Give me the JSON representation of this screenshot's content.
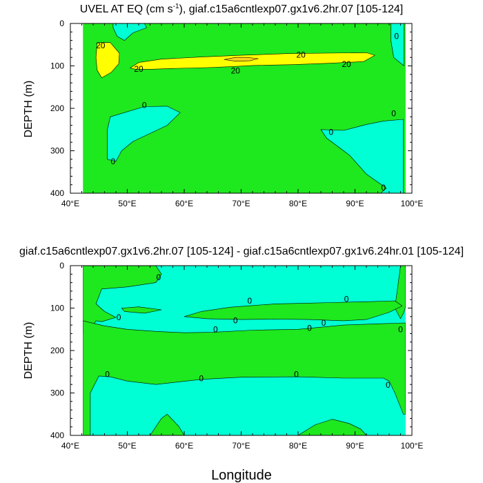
{
  "colors": {
    "negative": "#00ffd4",
    "low_positive": "#1ee81e",
    "mid_positive": "#ffff00",
    "high_positive": "#ffd21e",
    "axis": "#000000"
  },
  "chart_data": [
    {
      "type": "contour",
      "title": "UVEL AT EQ (cm s⁻¹), giaf.c15a6cntlexp07.gx1v6.2hr.07 [105-124]",
      "title_main": "UVEL AT EQ (cm s",
      "title_sup": "-1",
      "title_rest": "), giaf.c15a6cntlexp07.gx1v6.2hr.07 [105-124]",
      "ylabel": "DEPTH (m)",
      "xlim": [
        40,
        100
      ],
      "ylim": [
        0,
        400
      ],
      "x_ticks": [
        40,
        50,
        60,
        70,
        80,
        90,
        100
      ],
      "x_tick_labels": [
        "40°E",
        "50°E",
        "60°E",
        "70°E",
        "80°E",
        "90°E",
        "100°E"
      ],
      "y_ticks": [
        0,
        100,
        200,
        300,
        400
      ],
      "y_tick_labels": [
        "0",
        "100",
        "200",
        "300",
        "400"
      ],
      "data_extent": {
        "lon": [
          42.2,
          98.9
        ],
        "depth": [
          0,
          400
        ]
      },
      "background_region": "low_positive",
      "regions": [
        {
          "level": "negative",
          "points": [
            [
              47.5,
              0
            ],
            [
              53,
              0
            ],
            [
              53.4,
              10
            ],
            [
              51,
              22
            ],
            [
              49.5,
              40
            ],
            [
              48.2,
              30
            ],
            [
              47.5,
              10
            ]
          ]
        },
        {
          "level": "negative",
          "points": [
            [
              96.3,
              0
            ],
            [
              98.6,
              0
            ],
            [
              98.6,
              100
            ],
            [
              96.8,
              80
            ],
            [
              96.3,
              40
            ]
          ]
        },
        {
          "level": "negative",
          "points": [
            [
              47,
              220
            ],
            [
              53,
              196
            ],
            [
              57,
              195
            ],
            [
              59.3,
              210
            ],
            [
              57,
              240
            ],
            [
              51,
              278
            ],
            [
              49,
              300
            ],
            [
              48,
              325
            ],
            [
              46.5,
              320
            ],
            [
              46.5,
              250
            ]
          ]
        },
        {
          "level": "negative",
          "points": [
            [
              84,
              250
            ],
            [
              88,
              252
            ],
            [
              92,
              238
            ],
            [
              95,
              230
            ],
            [
              98.5,
              226
            ],
            [
              98.5,
              400
            ],
            [
              94.5,
              400
            ],
            [
              95.5,
              388
            ],
            [
              92,
              355
            ],
            [
              89,
              310
            ],
            [
              85,
              270
            ]
          ]
        },
        {
          "level": "mid_positive",
          "points": [
            [
              44.7,
              45
            ],
            [
              47,
              45
            ],
            [
              48.6,
              70
            ],
            [
              48.5,
              95
            ],
            [
              47.2,
              115
            ],
            [
              45.5,
              128
            ],
            [
              44.7,
              110
            ],
            [
              44.5,
              80
            ]
          ]
        },
        {
          "level": "mid_positive",
          "points": [
            [
              50.5,
              105
            ],
            [
              52,
              92
            ],
            [
              56,
              84
            ],
            [
              63,
              79
            ],
            [
              70,
              75
            ],
            [
              78,
              71
            ],
            [
              85,
              70
            ],
            [
              92,
              69
            ],
            [
              93.5,
              75
            ],
            [
              91.5,
              90
            ],
            [
              85,
              94
            ],
            [
              79,
              97
            ],
            [
              72,
              99
            ],
            [
              68,
              102
            ],
            [
              64,
              104
            ],
            [
              58,
              106
            ],
            [
              54,
              108
            ],
            [
              51.5,
              108
            ]
          ]
        },
        {
          "level": "high_positive",
          "points": [
            [
              67,
              85
            ],
            [
              69,
              80
            ],
            [
              71,
              80
            ],
            [
              73,
              83
            ],
            [
              71.5,
              88
            ],
            [
              69,
              89
            ]
          ]
        }
      ],
      "contour_labels": [
        {
          "text": "20",
          "lon": 45.3,
          "depth": 52
        },
        {
          "text": "20",
          "lon": 52,
          "depth": 107
        },
        {
          "text": "20",
          "lon": 69,
          "depth": 111
        },
        {
          "text": "20",
          "lon": 80.5,
          "depth": 74
        },
        {
          "text": "20",
          "lon": 88.5,
          "depth": 96
        },
        {
          "text": "0",
          "lon": 53,
          "depth": 193
        },
        {
          "text": "0",
          "lon": 47.5,
          "depth": 325
        },
        {
          "text": "0",
          "lon": 85.8,
          "depth": 256
        },
        {
          "text": "0",
          "lon": 97.3,
          "depth": 30
        },
        {
          "text": "0",
          "lon": 96.8,
          "depth": 212
        },
        {
          "text": "0",
          "lon": 95,
          "depth": 387
        }
      ]
    },
    {
      "type": "contour",
      "title": "giaf.c15a6cntlexp07.gx1v6.2hr.07 [105-124] - giaf.c15a6cntlexp07.gx1v6.24hr.01 [105-124]",
      "ylabel": "DEPTH (m)",
      "xlabel": "Longitude",
      "xlim": [
        40,
        100
      ],
      "ylim": [
        0,
        400
      ],
      "x_ticks": [
        40,
        50,
        60,
        70,
        80,
        90,
        100
      ],
      "x_tick_labels": [
        "40°E",
        "50°E",
        "60°E",
        "70°E",
        "80°E",
        "90°E",
        "100°E"
      ],
      "y_ticks": [
        0,
        100,
        200,
        300,
        400
      ],
      "y_tick_labels": [
        "0",
        "100",
        "200",
        "300",
        "400"
      ],
      "data_extent": {
        "lon": [
          42.2,
          98.9
        ],
        "depth": [
          0,
          400
        ]
      },
      "background_region": "negative",
      "regions": [
        {
          "level": "low_positive",
          "points": [
            [
              42.2,
              0
            ],
            [
              55,
              0
            ],
            [
              56,
              20
            ],
            [
              55,
              40
            ],
            [
              50,
              50
            ],
            [
              45.5,
              55
            ],
            [
              44.5,
              90
            ],
            [
              46,
              108
            ],
            [
              48,
              122
            ],
            [
              45.5,
              132
            ],
            [
              44.5,
              130
            ],
            [
              43.5,
              150
            ],
            [
              42.2,
              160
            ]
          ]
        },
        {
          "level": "low_positive",
          "points": [
            [
              98,
              0
            ],
            [
              98.9,
              0
            ],
            [
              98.9,
              95
            ],
            [
              98.6,
              110
            ],
            [
              98,
              125
            ],
            [
              97,
              100
            ],
            [
              97.5,
              50
            ]
          ]
        },
        {
          "level": "low_positive",
          "points": [
            [
              42.2,
              130
            ],
            [
              46,
              142
            ],
            [
              50,
              150
            ],
            [
              55,
              155
            ],
            [
              60,
              158
            ],
            [
              65,
              157
            ],
            [
              72,
              152
            ],
            [
              80,
              150
            ],
            [
              88,
              140
            ],
            [
              94,
              137
            ],
            [
              98.9,
              135
            ],
            [
              98.9,
              350
            ],
            [
              98.5,
              350
            ],
            [
              97,
              300
            ],
            [
              96,
              272
            ],
            [
              95,
              265
            ],
            [
              88,
              265
            ],
            [
              80,
              262
            ],
            [
              70,
              263
            ],
            [
              63,
              268
            ],
            [
              55,
              280
            ],
            [
              50,
              272
            ],
            [
              47,
              262
            ],
            [
              45,
              260
            ],
            [
              43.5,
              300
            ],
            [
              43.5,
              400
            ],
            [
              42.2,
              400
            ]
          ]
        },
        {
          "level": "low_positive",
          "points": [
            [
              49,
              100
            ],
            [
              52,
              97
            ],
            [
              56,
              104
            ],
            [
              53,
              112
            ],
            [
              49.5,
              108
            ]
          ]
        },
        {
          "level": "low_positive",
          "points": [
            [
              60,
              120
            ],
            [
              63,
              108
            ],
            [
              68,
              98
            ],
            [
              72,
              94
            ],
            [
              76,
              90
            ],
            [
              80,
              89
            ],
            [
              86,
              87
            ],
            [
              92,
              85
            ],
            [
              97,
              83
            ],
            [
              98.3,
              95
            ],
            [
              96,
              110
            ],
            [
              92,
              127
            ],
            [
              88,
              130
            ],
            [
              82,
              127
            ],
            [
              76,
              126
            ],
            [
              70,
              127
            ],
            [
              64,
              125
            ]
          ]
        },
        {
          "level": "low_positive",
          "points": [
            [
              54,
              400
            ],
            [
              56,
              360
            ],
            [
              57,
              350
            ],
            [
              59,
              378
            ],
            [
              60,
              400
            ]
          ]
        },
        {
          "level": "low_positive",
          "points": [
            [
              80,
              400
            ],
            [
              83,
              375
            ],
            [
              86,
              362
            ],
            [
              89,
              372
            ],
            [
              91,
              385
            ],
            [
              92,
              400
            ]
          ]
        }
      ],
      "contour_labels": [
        {
          "text": "0",
          "lon": 55.5,
          "depth": 28
        },
        {
          "text": "0",
          "lon": 71.5,
          "depth": 83
        },
        {
          "text": "0",
          "lon": 88.5,
          "depth": 79
        },
        {
          "text": "0",
          "lon": 48.5,
          "depth": 122
        },
        {
          "text": "0",
          "lon": 69,
          "depth": 129
        },
        {
          "text": "0",
          "lon": 84.5,
          "depth": 135
        },
        {
          "text": "0",
          "lon": 65.5,
          "depth": 150
        },
        {
          "text": "0",
          "lon": 82,
          "depth": 147
        },
        {
          "text": "0",
          "lon": 98,
          "depth": 150
        },
        {
          "text": "0",
          "lon": 46.5,
          "depth": 256
        },
        {
          "text": "0",
          "lon": 63,
          "depth": 266
        },
        {
          "text": "0",
          "lon": 79.7,
          "depth": 256
        },
        {
          "text": "0",
          "lon": 95.8,
          "depth": 281
        }
      ]
    }
  ]
}
